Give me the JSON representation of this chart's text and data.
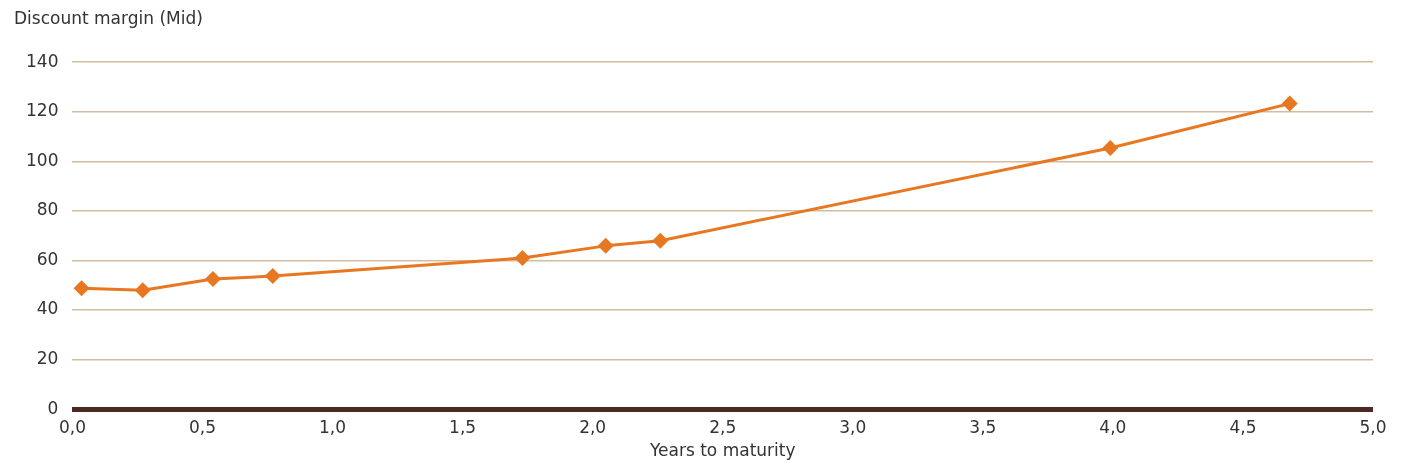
{
  "chart_data": {
    "type": "line",
    "xlabel": "Years to maturity",
    "ylabel": "Discount margin (Mid)",
    "x": [
      0.035,
      0.27,
      0.54,
      0.77,
      1.73,
      2.05,
      2.26,
      3.99,
      4.68
    ],
    "series": [
      {
        "color": "#e87722",
        "values": [
          48.8,
          48.0,
          52.5,
          53.7,
          61.0,
          65.9,
          68.0,
          105.4,
          123.3
        ]
      }
    ],
    "xlim": [
      0,
      5
    ],
    "xticks": [
      {
        "value": 0,
        "label": "0,0"
      },
      {
        "value": 0.5,
        "label": "0,5"
      },
      {
        "value": 1,
        "label": "1,0"
      },
      {
        "value": 1.5,
        "label": "1,5"
      },
      {
        "value": 2,
        "label": "2,0"
      },
      {
        "value": 2.5,
        "label": "2,5"
      },
      {
        "value": 3,
        "label": "3,0"
      },
      {
        "value": 3.5,
        "label": "3,5"
      },
      {
        "value": 4,
        "label": "4,0"
      },
      {
        "value": 4.5,
        "label": "4,5"
      },
      {
        "value": 5,
        "label": "5,0"
      }
    ],
    "ylim": [
      0,
      140
    ],
    "yticks": [
      0,
      20,
      40,
      60,
      80,
      100,
      120,
      140
    ],
    "grid": "y",
    "legend": false,
    "marker": "diamond",
    "line_style": "solid"
  }
}
